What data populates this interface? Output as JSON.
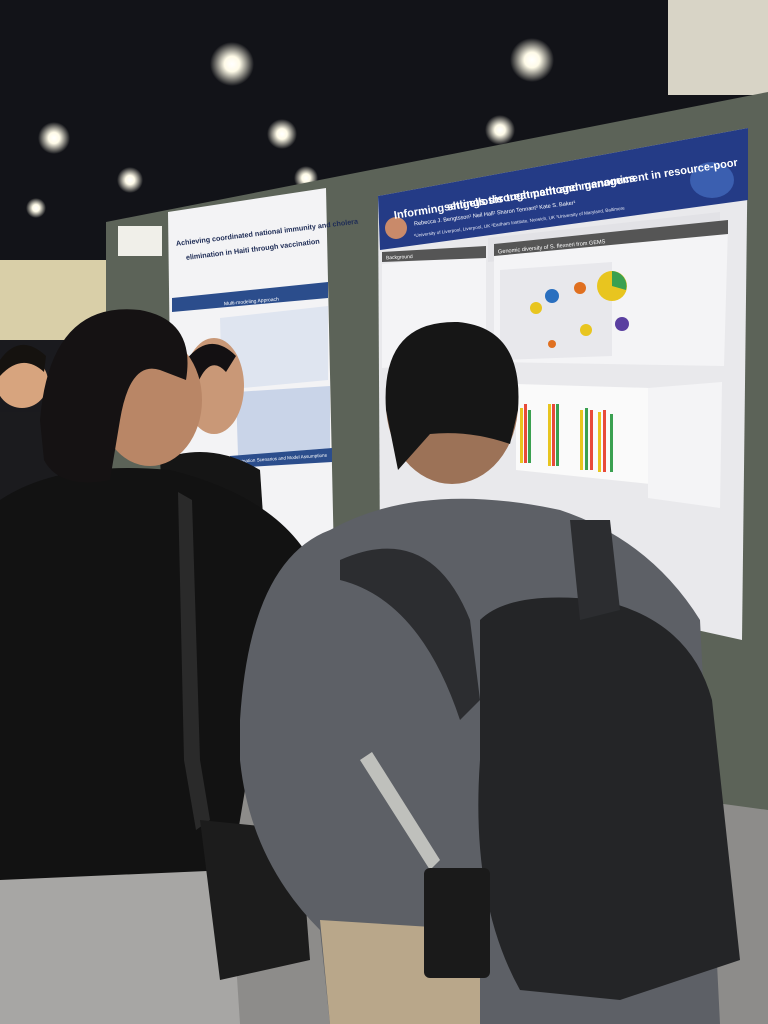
{
  "posters": [
    {
      "title_lines": [
        "Achieving coordinated national immunity and cholera",
        "elimination in Haiti through vaccination"
      ],
      "sections": [
        "Multi-modeling Approach",
        "Vaccination Scenarios and Model Assumptions"
      ]
    },
    {
      "title_lines": [
        "Informing shigellosis treatment and management in resource-poor",
        "settings through pathogen genomics"
      ],
      "authors": "Rebecca J. Bengtsson¹ Neil Hall² Sharon Tennant³ Kate S. Baker¹",
      "affiliations": "¹University of Liverpool, Liverpool, UK ²Earlham Institute, Norwich, UK ³University of Maryland, Baltimore",
      "sections": [
        "Background",
        "Genomic diversity of S. flexneri from GEMS"
      ]
    }
  ]
}
